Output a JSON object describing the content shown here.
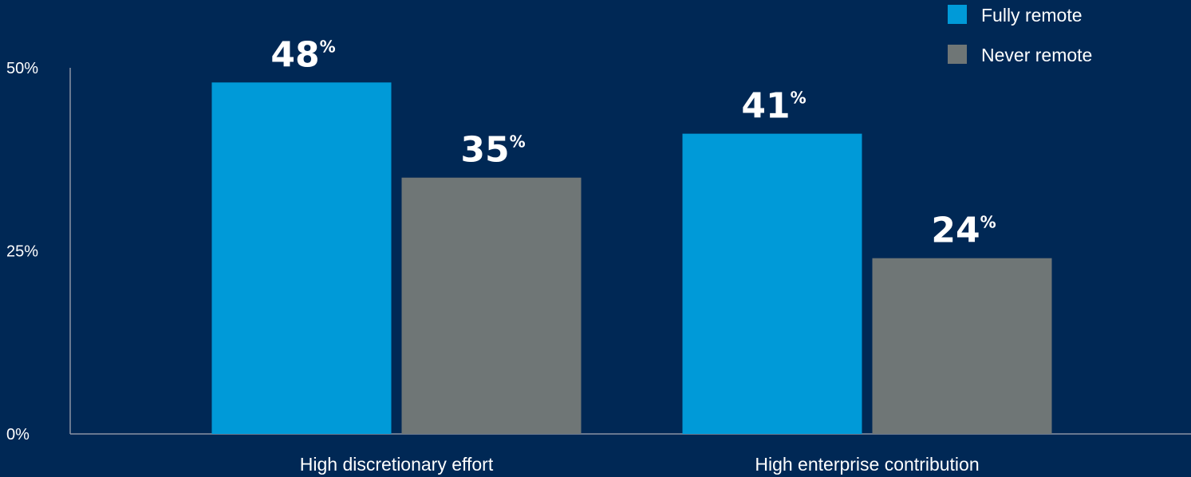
{
  "chart_data": {
    "type": "bar",
    "categories": [
      "High discretionary effort",
      "High enterprise contribution"
    ],
    "series": [
      {
        "name": "Fully remote",
        "values": [
          48,
          41
        ],
        "color": "#009ad8"
      },
      {
        "name": "Never remote",
        "values": [
          35,
          24
        ],
        "color": "#6f7676"
      }
    ],
    "value_suffix": "%",
    "y_ticks": [
      "0%",
      "25%",
      "50%"
    ],
    "ylim": [
      0,
      50
    ],
    "legend_position": "top-right",
    "grid": false
  },
  "colors": {
    "background": "#002855",
    "axis": "#8a93a3",
    "text": "#ffffff"
  }
}
